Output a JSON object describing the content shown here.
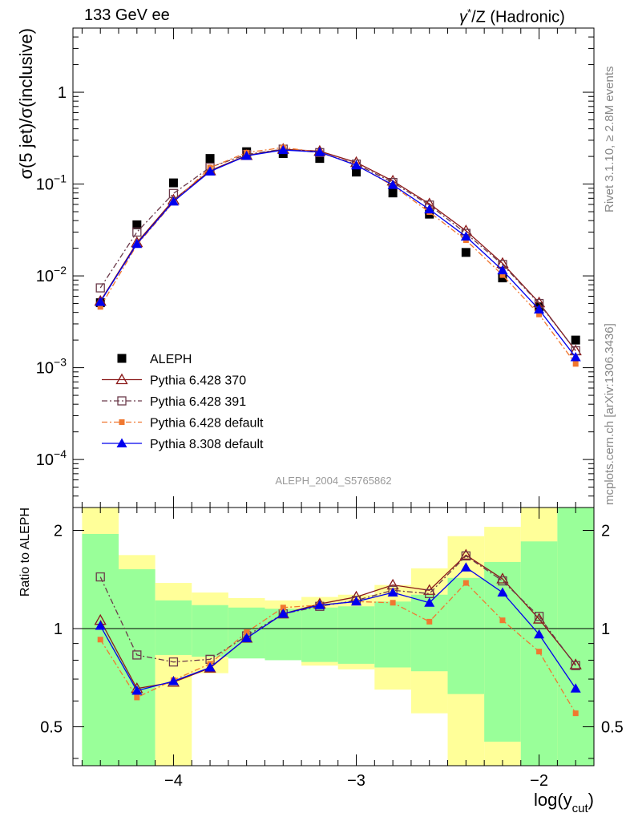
{
  "header": {
    "left": "133 GeV ee",
    "right_prefix": "γ",
    "right_sup": "*",
    "right_suffix": "/Z (Hadronic)"
  },
  "side": {
    "rivet": "Rivet 3.1.10, ≥ 2.8M events",
    "site": "mcplots.cern.ch [arXiv:1306.3436]"
  },
  "watermark": "ALEPH_2004_S5765862",
  "chart_data": [
    {
      "type": "line",
      "panel": "main",
      "ylabel": "σ(5 jet)/σ(inclusive)",
      "yscale": "log",
      "ylim": [
        3e-05,
        5
      ],
      "xlim": [
        -4.55,
        -1.7
      ],
      "yticks": [
        {
          "v": 0.0001,
          "base": "10",
          "exp": "−4"
        },
        {
          "v": 0.001,
          "base": "10",
          "exp": "−3"
        },
        {
          "v": 0.01,
          "base": "10",
          "exp": "−2"
        },
        {
          "v": 0.1,
          "base": "10",
          "exp": "−1"
        },
        {
          "v": 1,
          "base": "1",
          "exp": ""
        }
      ],
      "x": [
        -4.4,
        -4.2,
        -4.0,
        -3.8,
        -3.6,
        -3.4,
        -3.2,
        -3.0,
        -2.8,
        -2.6,
        -2.4,
        -2.2,
        -2.0,
        -1.8
      ],
      "series": [
        {
          "name": "ALEPH",
          "color": "#000000",
          "marker": "square-filled",
          "line": "none",
          "values": [
            0.0051,
            0.036,
            0.103,
            0.19,
            0.225,
            0.215,
            0.19,
            0.135,
            0.08,
            0.047,
            0.018,
            0.0095,
            0.0046,
            0.002
          ]
        },
        {
          "name": "Pythia 6.428 370",
          "color": "#8b1a1a",
          "marker": "triangle-open",
          "line": "solid",
          "values": [
            0.0053,
            0.023,
            0.067,
            0.14,
            0.205,
            0.24,
            0.228,
            0.172,
            0.108,
            0.061,
            0.031,
            0.0137,
            0.0051,
            0.00153
          ]
        },
        {
          "name": "Pythia 6.428 391",
          "color": "#6b3a4a",
          "marker": "square-open",
          "line": "dashdot",
          "values": [
            0.0074,
            0.03,
            0.079,
            0.152,
            0.21,
            0.24,
            0.22,
            0.165,
            0.104,
            0.059,
            0.029,
            0.0133,
            0.005,
            0.00153
          ]
        },
        {
          "name": "Pythia 6.428 default",
          "color": "#f07830",
          "marker": "square-small",
          "line": "dashdot",
          "values": [
            0.0046,
            0.0218,
            0.0635,
            0.151,
            0.22,
            0.25,
            0.222,
            0.162,
            0.096,
            0.0495,
            0.0245,
            0.0102,
            0.0038,
            0.0011
          ]
        },
        {
          "name": "Pythia 8.308 default",
          "color": "#0000ee",
          "marker": "triangle-filled",
          "line": "solid",
          "values": [
            0.0052,
            0.0223,
            0.0645,
            0.137,
            0.203,
            0.235,
            0.223,
            0.16,
            0.098,
            0.053,
            0.0268,
            0.0115,
            0.0043,
            0.0013
          ]
        }
      ]
    },
    {
      "type": "line",
      "panel": "ratio",
      "ylabel": "Ratio to ALEPH",
      "xlabel_base": "log(y",
      "xlabel_sub": "cut",
      "xlabel_close": ")",
      "yscale": "log",
      "ylim": [
        0.38,
        2.35
      ],
      "xlim": [
        -4.55,
        -1.7
      ],
      "xticks": [
        {
          "v": -4,
          "label": "−4"
        },
        {
          "v": -3,
          "label": "−3"
        },
        {
          "v": -2,
          "label": "−2"
        }
      ],
      "yticks": [
        {
          "v": 0.5,
          "label": "0.5"
        },
        {
          "v": 1,
          "label": "1"
        },
        {
          "v": 2,
          "label": "2"
        }
      ],
      "bands": {
        "edges": [
          -4.5,
          -4.3,
          -4.1,
          -3.9,
          -3.7,
          -3.5,
          -3.3,
          -3.1,
          -2.9,
          -2.7,
          -2.5,
          -2.3,
          -2.1,
          -1.9,
          -1.7
        ],
        "green_lo": [
          0.38,
          0.38,
          0.83,
          0.82,
          0.81,
          0.8,
          0.79,
          0.78,
          0.76,
          0.74,
          0.63,
          0.45,
          0.38,
          0.38
        ],
        "green_hi": [
          1.95,
          1.52,
          1.22,
          1.18,
          1.16,
          1.15,
          1.16,
          1.17,
          1.21,
          1.27,
          1.43,
          1.6,
          1.85,
          2.35
        ],
        "yellow_lo": [
          0.38,
          0.38,
          0.38,
          0.73,
          0.82,
          0.82,
          0.77,
          0.75,
          0.65,
          0.55,
          0.38,
          0.38,
          0.38,
          0.38
        ],
        "yellow_hi": [
          2.35,
          1.68,
          1.38,
          1.29,
          1.24,
          1.22,
          1.25,
          1.27,
          1.36,
          1.53,
          1.92,
          2.05,
          2.35,
          2.35
        ]
      },
      "series": [
        {
          "name": "Pythia 6.428 370",
          "values": [
            1.06,
            0.655,
            0.685,
            0.757,
            0.935,
            1.11,
            1.19,
            1.25,
            1.36,
            1.31,
            1.68,
            1.42,
            1.07,
            0.775
          ]
        },
        {
          "name": "Pythia 6.428 391",
          "values": [
            1.44,
            0.83,
            0.79,
            0.805,
            0.95,
            1.11,
            1.17,
            1.22,
            1.31,
            1.28,
            1.67,
            1.4,
            1.09,
            0.77
          ]
        },
        {
          "name": "Pythia 6.428 default",
          "values": [
            0.925,
            0.615,
            0.695,
            0.78,
            0.975,
            1.16,
            1.18,
            1.21,
            1.2,
            1.05,
            1.38,
            1.06,
            0.85,
            0.55
          ]
        },
        {
          "name": "Pythia 8.308 default",
          "values": [
            1.02,
            0.645,
            0.69,
            0.76,
            0.935,
            1.11,
            1.18,
            1.21,
            1.29,
            1.2,
            1.54,
            1.29,
            0.96,
            0.655
          ]
        }
      ]
    }
  ]
}
